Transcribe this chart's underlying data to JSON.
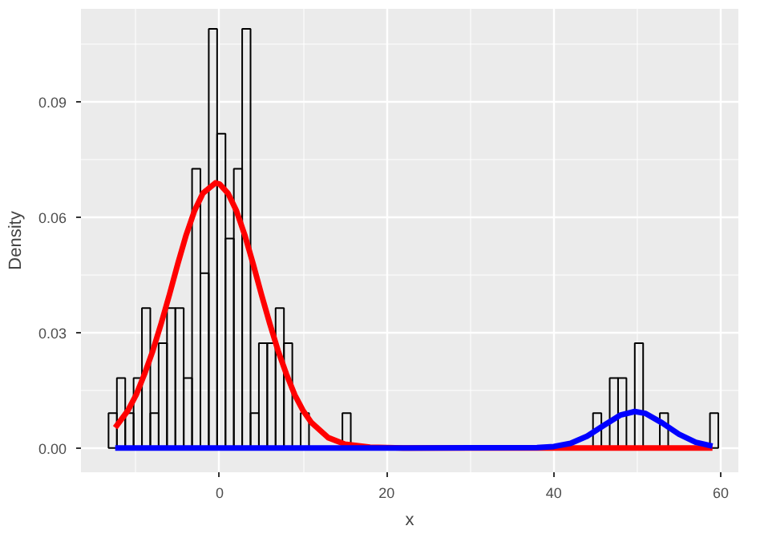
{
  "chart_data": {
    "type": "histogram",
    "xlabel": "x",
    "ylabel": "Density",
    "bins": [
      -13.3,
      -12.3,
      -11.3,
      -10.3,
      -9.3,
      -8.3,
      -7.3,
      -6.3,
      -5.3,
      -4.3,
      -3.3,
      -2.3,
      -1.3,
      -0.3,
      0.7,
      1.7,
      2.7,
      3.7,
      4.7,
      5.7,
      6.7,
      7.7,
      8.7,
      9.7,
      10.7,
      11.7,
      12.7,
      13.7,
      14.7,
      15.7,
      16.7,
      17.7,
      18.7,
      19.7,
      20.7,
      21.7,
      22.7,
      23.7,
      24.7,
      25.7,
      26.7,
      27.7,
      28.7,
      29.7,
      30.7,
      31.7,
      32.7,
      33.7,
      34.7,
      35.7,
      36.7,
      37.7,
      38.7,
      39.7,
      40.7,
      41.7,
      42.7,
      43.7,
      44.7,
      45.7,
      46.7,
      47.7,
      48.7,
      49.7,
      50.7,
      51.7,
      52.7,
      53.7,
      54.7,
      55.7,
      56.7,
      57.7,
      58.7,
      59.7
    ],
    "values": [
      0.0091,
      0.0182,
      0.0091,
      0.0182,
      0.0364,
      0.0091,
      0.0273,
      0.0364,
      0.0364,
      0.0182,
      0.0727,
      0.0455,
      0.1091,
      0.0818,
      0.0545,
      0.0727,
      0.1091,
      0.0091,
      0.0273,
      0.0273,
      0.0364,
      0.0273,
      0,
      0.0091,
      0,
      0,
      0,
      0,
      0.0091,
      0,
      0,
      0,
      0,
      0,
      0,
      0,
      0,
      0,
      0,
      0,
      0,
      0,
      0,
      0,
      0,
      0,
      0,
      0,
      0,
      0,
      0,
      0,
      0,
      0,
      0,
      0,
      0,
      0,
      0.0091,
      0,
      0.0182,
      0.0182,
      0,
      0.0273,
      0,
      0,
      0.0091,
      0,
      0,
      0,
      0,
      0,
      0.0091
    ],
    "color": "#000000",
    "series": [
      {
        "type": "line",
        "color": "#ff0000",
        "x": [
          -12.5,
          -11,
          -10,
          -9,
          -8,
          -7,
          -6,
          -5,
          -4,
          -3,
          -2,
          -0.5,
          0,
          1,
          2,
          3,
          4,
          5,
          6,
          7,
          8,
          9,
          10,
          11,
          13,
          15,
          18,
          22,
          40,
          59
        ],
        "values": [
          0.0053,
          0.0097,
          0.0138,
          0.0192,
          0.0253,
          0.0324,
          0.04,
          0.048,
          0.0555,
          0.0618,
          0.0663,
          0.069,
          0.0687,
          0.0663,
          0.0618,
          0.0555,
          0.048,
          0.04,
          0.0324,
          0.0253,
          0.0192,
          0.0138,
          0.0097,
          0.0066,
          0.0027,
          0.001,
          0.0002,
          0,
          0,
          0
        ]
      },
      {
        "type": "line",
        "color": "#0000ff",
        "x": [
          -12.5,
          20,
          38,
          40,
          42,
          44,
          46,
          48,
          49.7,
          51,
          53,
          55,
          57,
          59
        ],
        "values": [
          0,
          0,
          0.0001,
          0.0004,
          0.0012,
          0.0031,
          0.0059,
          0.0086,
          0.0095,
          0.009,
          0.0065,
          0.0036,
          0.0015,
          0.0005
        ]
      }
    ],
    "xlim": [
      -16.6,
      62.1
    ],
    "ylim": [
      -0.0063,
      0.1143
    ],
    "xticks": [
      0,
      20,
      40,
      60
    ],
    "yticks": [
      {
        "value": 0,
        "label": "0.00"
      },
      {
        "value": 0.03,
        "label": "0.03"
      },
      {
        "value": 0.06,
        "label": "0.06"
      },
      {
        "value": 0.09,
        "label": "0.09"
      }
    ],
    "grid": true
  }
}
